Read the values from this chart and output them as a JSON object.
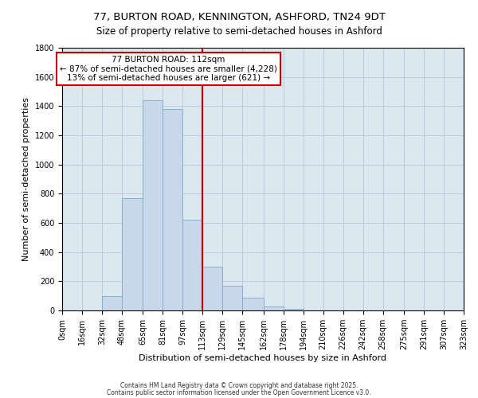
{
  "title": "77, BURTON ROAD, KENNINGTON, ASHFORD, TN24 9DT",
  "subtitle": "Size of property relative to semi-detached houses in Ashford",
  "xlabel": "Distribution of semi-detached houses by size in Ashford",
  "ylabel": "Number of semi-detached properties",
  "bin_edges": [
    0,
    16,
    32,
    48,
    65,
    81,
    97,
    113,
    129,
    145,
    162,
    178,
    194,
    210,
    226,
    242,
    258,
    275,
    291,
    307,
    323
  ],
  "bar_heights": [
    0,
    0,
    100,
    770,
    1440,
    1380,
    620,
    300,
    170,
    85,
    30,
    10,
    0,
    0,
    0,
    0,
    0,
    0,
    0,
    0
  ],
  "bar_color": "#c8d8ea",
  "bar_edge_color": "#7baac8",
  "vline_x": 113,
  "vline_color": "#cc0000",
  "ylim": [
    0,
    1800
  ],
  "yticks": [
    0,
    200,
    400,
    600,
    800,
    1000,
    1200,
    1400,
    1600,
    1800
  ],
  "tick_labels": [
    "0sqm",
    "16sqm",
    "32sqm",
    "48sqm",
    "65sqm",
    "81sqm",
    "97sqm",
    "113sqm",
    "129sqm",
    "145sqm",
    "162sqm",
    "178sqm",
    "194sqm",
    "210sqm",
    "226sqm",
    "242sqm",
    "258sqm",
    "275sqm",
    "291sqm",
    "307sqm",
    "323sqm"
  ],
  "annotation_title": "77 BURTON ROAD: 112sqm",
  "annotation_line1": "← 87% of semi-detached houses are smaller (4,228)",
  "annotation_line2": "13% of semi-detached houses are larger (621) →",
  "annotation_box_color": "#ffffff",
  "annotation_box_edge": "#cc0000",
  "footnote1": "Contains HM Land Registry data © Crown copyright and database right 2025.",
  "footnote2": "Contains public sector information licensed under the Open Government Licence v3.0.",
  "bg_color": "#ffffff",
  "plot_bg_color": "#dce8f0",
  "grid_color": "#b8ccd8",
  "title_fontsize": 9.5,
  "subtitle_fontsize": 8.5,
  "axis_label_fontsize": 8,
  "tick_fontsize": 7,
  "annot_fontsize": 7.5,
  "footnote_fontsize": 5.5
}
